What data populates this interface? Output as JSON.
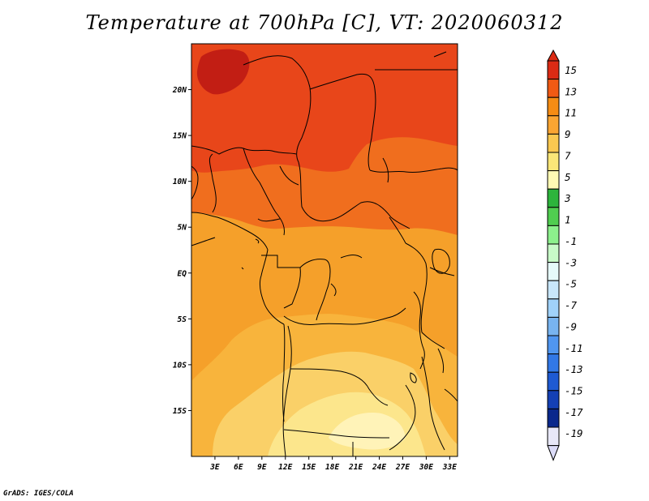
{
  "title": "Temperature at 700hPa [C], VT: 2020060312",
  "credit": "GrADS: IGES/COLA",
  "map": {
    "lon_range": [
      0,
      34
    ],
    "lat_range": [
      -20,
      25
    ],
    "lon_ticks": [
      "3E",
      "6E",
      "9E",
      "12E",
      "15E",
      "18E",
      "21E",
      "24E",
      "27E",
      "30E",
      "33E"
    ],
    "lon_tick_values": [
      3,
      6,
      9,
      12,
      15,
      18,
      21,
      24,
      27,
      30,
      33
    ],
    "lat_ticks": [
      "20N",
      "15N",
      "10N",
      "5N",
      "EQ",
      "5S",
      "10S",
      "15S"
    ],
    "lat_tick_values": [
      20,
      15,
      10,
      5,
      0,
      -5,
      -10,
      -15
    ]
  },
  "colorbar": {
    "labels": [
      "15",
      "13",
      "11",
      "9",
      "7",
      "5",
      "3",
      "1",
      "-1",
      "-3",
      "-5",
      "-7",
      "-9",
      "-11",
      "-13",
      "-15",
      "-17",
      "-19"
    ],
    "colors": [
      "#a00000",
      "#dc2b14",
      "#f05a14",
      "#f58c14",
      "#faa532",
      "#fac850",
      "#fae678",
      "#fffab4",
      "#2db43c",
      "#50cd50",
      "#8cf08c",
      "#c8fac8",
      "#e6fafa",
      "#c8e6fa",
      "#a0d2fa",
      "#78b4f0",
      "#5096f0",
      "#3278e6",
      "#1e5ad2",
      "#1440b4",
      "#0a288c",
      "#e8e8f8"
    ],
    "arrow_top_color": "#dc2b14",
    "arrow_bottom_color": "#dcdcf8"
  }
}
